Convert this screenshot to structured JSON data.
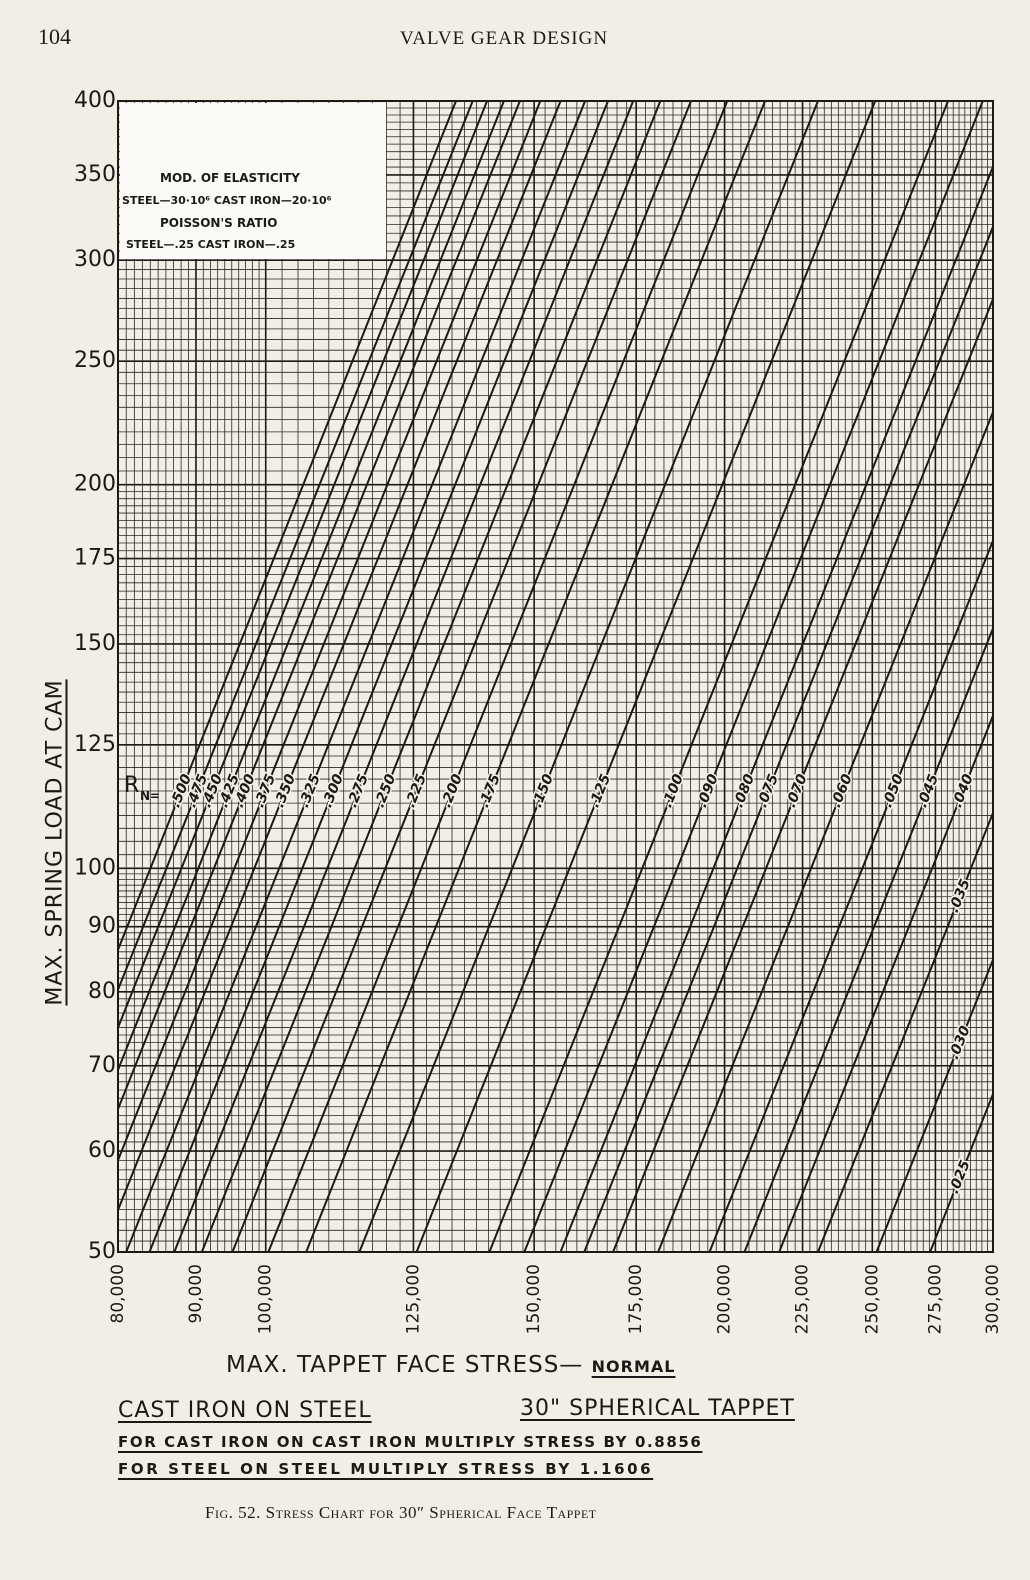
{
  "page": {
    "number": "104",
    "running_head": "VALVE GEAR DESIGN"
  },
  "caption": "Fig. 52. Stress Chart for 30″ Spherical Face Tappet",
  "chart_data": {
    "type": "line",
    "x_label": "MAX. TAPPET FACE STRESS—",
    "x_label_sub": "NORMAL",
    "y_label": "MAX. SPRING LOAD AT CAM",
    "notes": {
      "box": [
        "MOD. OF ELASTICITY",
        "STEEL—30·10⁶  CAST IRON—20·10⁶",
        "POISSON'S RATIO",
        "STEEL—.25  CAST IRON—.25"
      ],
      "material": "CAST IRON ON STEEL",
      "tappet": "30\" SPHERICAL TAPPET",
      "factor_1": "FOR CAST IRON ON CAST IRON MULTIPLY STRESS BY 0.8856",
      "factor_2": "FOR STEEL ON STEEL MULTIPLY STRESS BY 1.1606"
    },
    "series_title": "R",
    "series_title_sub": "N=",
    "log_x": true,
    "log_y": true,
    "grid": true,
    "minor_grid": true,
    "color": "#1c1a17",
    "xlim": [
      80000,
      300000
    ],
    "ylim": [
      50,
      400
    ],
    "xticks": [
      {
        "value": 80000,
        "label": "80,000"
      },
      {
        "value": 90000,
        "label": "90,000"
      },
      {
        "value": 100000,
        "label": "100,000"
      },
      {
        "value": 125000,
        "label": "125,000"
      },
      {
        "value": 150000,
        "label": "150,000"
      },
      {
        "value": 175000,
        "label": "175,000"
      },
      {
        "value": 200000,
        "label": "200,000"
      },
      {
        "value": 225000,
        "label": "225,000"
      },
      {
        "value": 250000,
        "label": "250,000"
      },
      {
        "value": 275000,
        "label": "275,000"
      },
      {
        "value": 300000,
        "label": "300,000"
      }
    ],
    "yticks": [
      50,
      60,
      70,
      80,
      90,
      100,
      125,
      150,
      175,
      200,
      250,
      300,
      350,
      400
    ],
    "series": [
      {
        "name": ".500",
        "x": [
          66700,
          133300
        ],
        "values": [
          50,
          400
        ]
      },
      {
        "name": ".475",
        "x": [
          68300,
          136700
        ],
        "values": [
          50,
          400
        ]
      },
      {
        "name": ".450",
        "x": [
          69900,
          139700
        ],
        "values": [
          50,
          400
        ]
      },
      {
        "name": ".425",
        "x": [
          71700,
          143300
        ],
        "values": [
          50,
          400
        ]
      },
      {
        "name": ".400",
        "x": [
          73400,
          146800
        ],
        "values": [
          50,
          400
        ]
      },
      {
        "name": ".375",
        "x": [
          75700,
          151400
        ],
        "values": [
          50,
          400
        ]
      },
      {
        "name": ".350",
        "x": [
          78000,
          156100
        ],
        "values": [
          50,
          400
        ]
      },
      {
        "name": ".325",
        "x": [
          81000,
          162000
        ],
        "values": [
          50,
          400
        ]
      },
      {
        "name": ".300",
        "x": [
          83900,
          167700
        ],
        "values": [
          50,
          400
        ]
      },
      {
        "name": ".275",
        "x": [
          87100,
          174200
        ],
        "values": [
          50,
          400
        ]
      },
      {
        "name": ".250",
        "x": [
          90800,
          181500
        ],
        "values": [
          50,
          400
        ]
      },
      {
        "name": ".225",
        "x": [
          95100,
          190100
        ],
        "values": [
          50,
          400
        ]
      },
      {
        "name": ".200",
        "x": [
          100400,
          200800
        ],
        "values": [
          50,
          400
        ]
      },
      {
        "name": ".175",
        "x": [
          106300,
          212600
        ],
        "values": [
          50,
          400
        ]
      },
      {
        "name": ".150",
        "x": [
          115200,
          230300
        ],
        "values": [
          50,
          400
        ]
      },
      {
        "name": ".125",
        "x": [
          125600,
          251100
        ],
        "values": [
          50,
          400
        ]
      },
      {
        "name": ".100",
        "x": [
          140200,
          280300
        ],
        "values": [
          50,
          400
        ]
      },
      {
        "name": ".090",
        "x": [
          147800,
          295400
        ],
        "values": [
          50,
          400
        ]
      },
      {
        "name": ".080",
        "x": [
          156100,
          312100
        ],
        "values": [
          50,
          400
        ]
      },
      {
        "name": ".075",
        "x": [
          161800,
          323600
        ],
        "values": [
          50,
          400
        ]
      },
      {
        "name": ".070",
        "x": [
          169000,
          338000
        ],
        "values": [
          50,
          400
        ]
      },
      {
        "name": ".060",
        "x": [
          180900,
          361800
        ],
        "values": [
          50,
          400
        ]
      },
      {
        "name": ".050",
        "x": [
          195500,
          390900
        ],
        "values": [
          50,
          400
        ]
      },
      {
        "name": ".045",
        "x": [
          206100,
          412100
        ],
        "values": [
          50,
          400
        ]
      },
      {
        "name": ".040",
        "x": [
          217200,
          434400
        ],
        "values": [
          50,
          400
        ]
      },
      {
        "name": ".035",
        "x": [
          230300,
          460600
        ],
        "values": [
          50,
          400
        ]
      },
      {
        "name": ".030",
        "x": [
          251600,
          503000
        ],
        "values": [
          50,
          400
        ]
      },
      {
        "name": ".025",
        "x": [
          272800,
          545400
        ],
        "values": [
          50,
          400
        ]
      }
    ]
  }
}
